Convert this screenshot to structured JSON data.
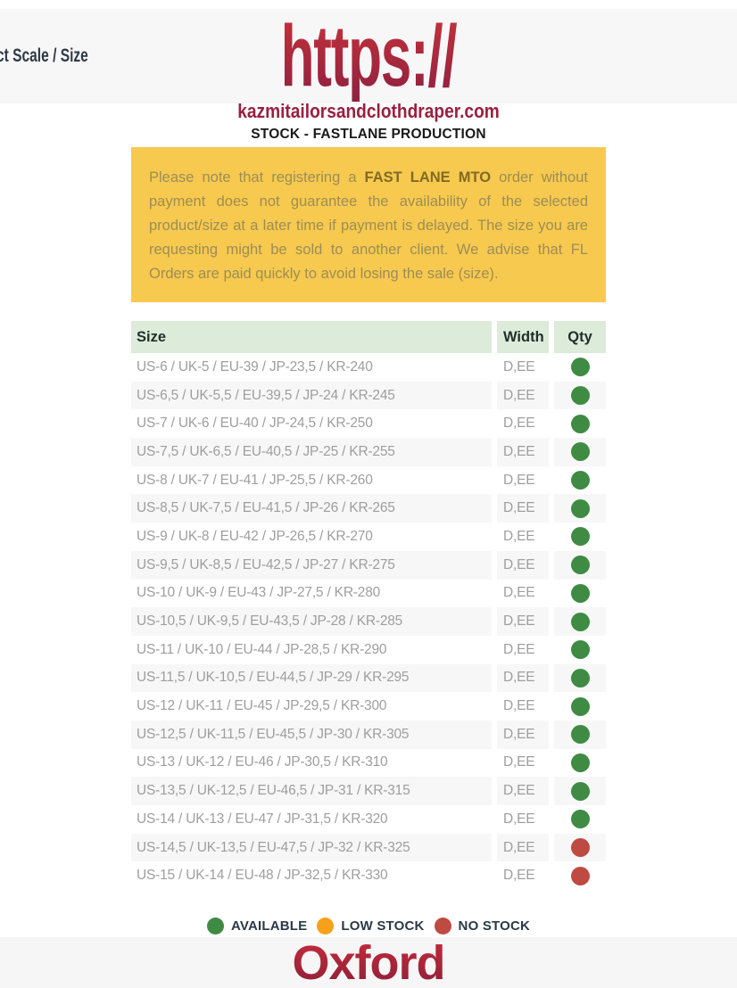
{
  "header": {
    "partial_title": "ct Scale / Size",
    "logo_protocol": "https://",
    "logo_domain": "kazmitailorsandclothdraper.com",
    "subtitle": "STOCK - FASTLANE PRODUCTION"
  },
  "notice": {
    "prefix": "Please note that registering a ",
    "bold_text": "FAST LANE MTO",
    "suffix": " order without payment does not guarantee the availability of the selected product/size at a later time if payment is delayed. The size you are requesting might be sold to another client. We advise that FL Orders are paid quickly to avoid losing the sale (size)."
  },
  "table": {
    "headers": [
      "Size",
      "Width",
      "Qty"
    ],
    "rows": [
      {
        "size": "US-6 / UK-5 / EU-39 / JP-23,5 / KR-240",
        "width": "D,EE",
        "status": "available"
      },
      {
        "size": "US-6,5 / UK-5,5 / EU-39,5 / JP-24 / KR-245",
        "width": "D,EE",
        "status": "available"
      },
      {
        "size": "US-7 / UK-6 / EU-40 / JP-24,5 / KR-250",
        "width": "D,EE",
        "status": "available"
      },
      {
        "size": "US-7,5 / UK-6,5 / EU-40,5 / JP-25 / KR-255",
        "width": "D,EE",
        "status": "available"
      },
      {
        "size": "US-8 / UK-7 / EU-41 / JP-25,5 / KR-260",
        "width": "D,EE",
        "status": "available"
      },
      {
        "size": "US-8,5 / UK-7,5 / EU-41,5 / JP-26 / KR-265",
        "width": "D,EE",
        "status": "available"
      },
      {
        "size": "US-9 / UK-8 / EU-42 / JP-26,5 / KR-270",
        "width": "D,EE",
        "status": "available"
      },
      {
        "size": "US-9,5 / UK-8,5 / EU-42,5 / JP-27 / KR-275",
        "width": "D,EE",
        "status": "available"
      },
      {
        "size": "US-10 / UK-9 / EU-43 / JP-27,5 / KR-280",
        "width": "D,EE",
        "status": "available"
      },
      {
        "size": "US-10,5 / UK-9,5 / EU-43,5 / JP-28 / KR-285",
        "width": "D,EE",
        "status": "available"
      },
      {
        "size": "US-11 / UK-10 / EU-44 / JP-28,5 / KR-290",
        "width": "D,EE",
        "status": "available"
      },
      {
        "size": "US-11,5 / UK-10,5 / EU-44,5 / JP-29 / KR-295",
        "width": "D,EE",
        "status": "available"
      },
      {
        "size": "US-12 / UK-11 / EU-45 / JP-29,5 / KR-300",
        "width": "D,EE",
        "status": "available"
      },
      {
        "size": "US-12,5 / UK-11,5 / EU-45,5 / JP-30 / KR-305",
        "width": "D,EE",
        "status": "available"
      },
      {
        "size": "US-13 / UK-12 / EU-46 / JP-30,5 / KR-310",
        "width": "D,EE",
        "status": "available"
      },
      {
        "size": "US-13,5 / UK-12,5 / EU-46,5 / JP-31 / KR-315",
        "width": "D,EE",
        "status": "available"
      },
      {
        "size": "US-14 / UK-13 / EU-47 / JP-31,5 / KR-320",
        "width": "D,EE",
        "status": "available"
      },
      {
        "size": "US-14,5 / UK-13,5 / EU-47,5 / JP-32 / KR-325",
        "width": "D,EE",
        "status": "no_stock"
      },
      {
        "size": "US-15 / UK-14 / EU-48 / JP-32,5 / KR-330",
        "width": "D,EE",
        "status": "no_stock"
      }
    ]
  },
  "legend": [
    {
      "label": "AVAILABLE",
      "status": "available"
    },
    {
      "label": "LOW STOCK",
      "status": "low_stock"
    },
    {
      "label": "NO STOCK",
      "status": "no_stock"
    }
  ],
  "footer": {
    "title": "Oxford"
  },
  "colors": {
    "status": {
      "available": "#3f8b44",
      "low_stock": "#f7a11b",
      "no_stock": "#bf4a42"
    },
    "brand_maroon": "#99203f",
    "notice_background": "#f7c94f",
    "table_header_background": "#dcebda"
  }
}
